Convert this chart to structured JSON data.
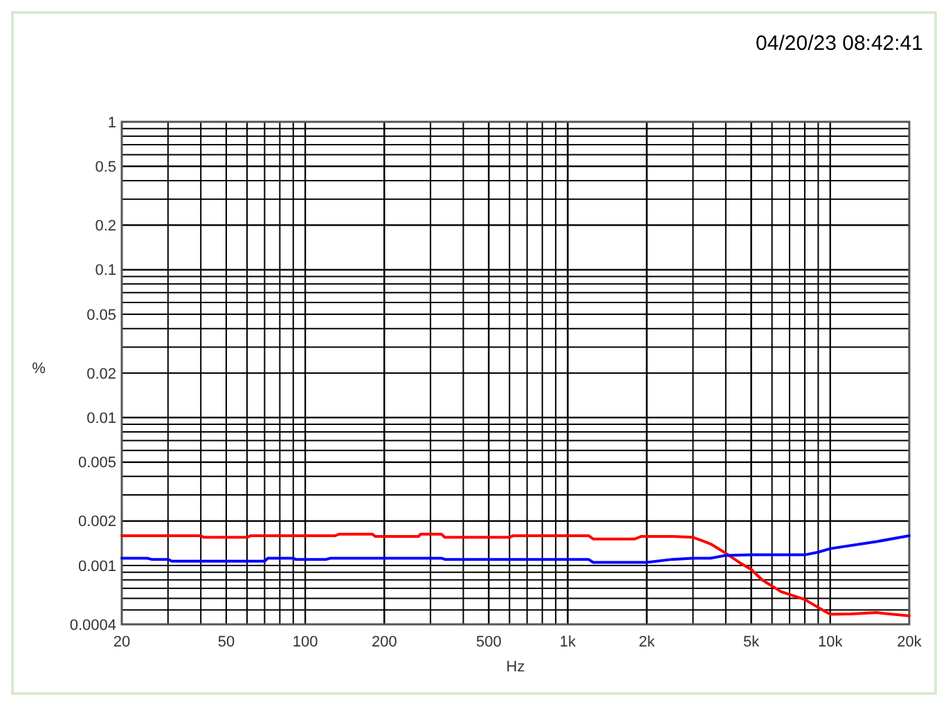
{
  "chart_data": {
    "type": "line",
    "subtitle": "04/20/23 08:42:41",
    "xlabel": "Hz",
    "ylabel": "%",
    "log": "xy",
    "grid": true,
    "line_style": "solid",
    "xlim": [
      20,
      20000
    ],
    "xticks": [
      20,
      50,
      100,
      200,
      500,
      {
        "value": 1000,
        "label": "1k"
      },
      {
        "value": 2000,
        "label": "2k"
      },
      {
        "value": 5000,
        "label": "5k"
      },
      {
        "value": 10000,
        "label": "10k"
      },
      {
        "value": 20000,
        "label": "20k"
      }
    ],
    "ylim": [
      0.0004,
      1
    ],
    "yticks": [
      0.0004,
      0.001,
      0.002,
      0.005,
      0.01,
      0.02,
      0.05,
      0.1,
      0.2,
      0.5,
      1
    ],
    "series": [
      {
        "color": "#ff0000",
        "x": [
          20,
          40,
          41,
          60,
          62,
          130,
          135,
          180,
          185,
          270,
          275,
          330,
          340,
          600,
          620,
          1200,
          1250,
          1800,
          1900,
          2500,
          3000,
          3500,
          4000,
          4500,
          5000,
          5500,
          6500,
          8000,
          9000,
          10000,
          12000,
          15000,
          20000
        ],
        "values": [
          0.00159,
          0.00159,
          0.00155,
          0.00155,
          0.00159,
          0.00159,
          0.00163,
          0.00163,
          0.00157,
          0.00157,
          0.00163,
          0.00163,
          0.00155,
          0.00155,
          0.00159,
          0.00159,
          0.00151,
          0.00151,
          0.00157,
          0.00157,
          0.00155,
          0.0014,
          0.00121,
          0.00105,
          0.00094,
          0.0008,
          0.000665,
          0.000589,
          0.00052,
          0.000468,
          0.00047,
          0.00048,
          0.000457
        ]
      },
      {
        "color": "#0000ff",
        "x": [
          20,
          25,
          26,
          30,
          31,
          60,
          70,
          72,
          90,
          92,
          120,
          125,
          330,
          340,
          1200,
          1250,
          1800,
          2000,
          2500,
          3000,
          3500,
          4000,
          5000,
          6500,
          8000,
          9000,
          10000,
          15000,
          20000
        ],
        "values": [
          0.00112,
          0.00112,
          0.0011,
          0.0011,
          0.00107,
          0.00107,
          0.00107,
          0.00112,
          0.00112,
          0.0011,
          0.0011,
          0.00112,
          0.00112,
          0.0011,
          0.0011,
          0.00105,
          0.00105,
          0.00105,
          0.0011,
          0.00112,
          0.00112,
          0.00117,
          0.00118,
          0.00118,
          0.00118,
          0.00123,
          0.0013,
          0.00145,
          0.00159
        ]
      }
    ]
  }
}
